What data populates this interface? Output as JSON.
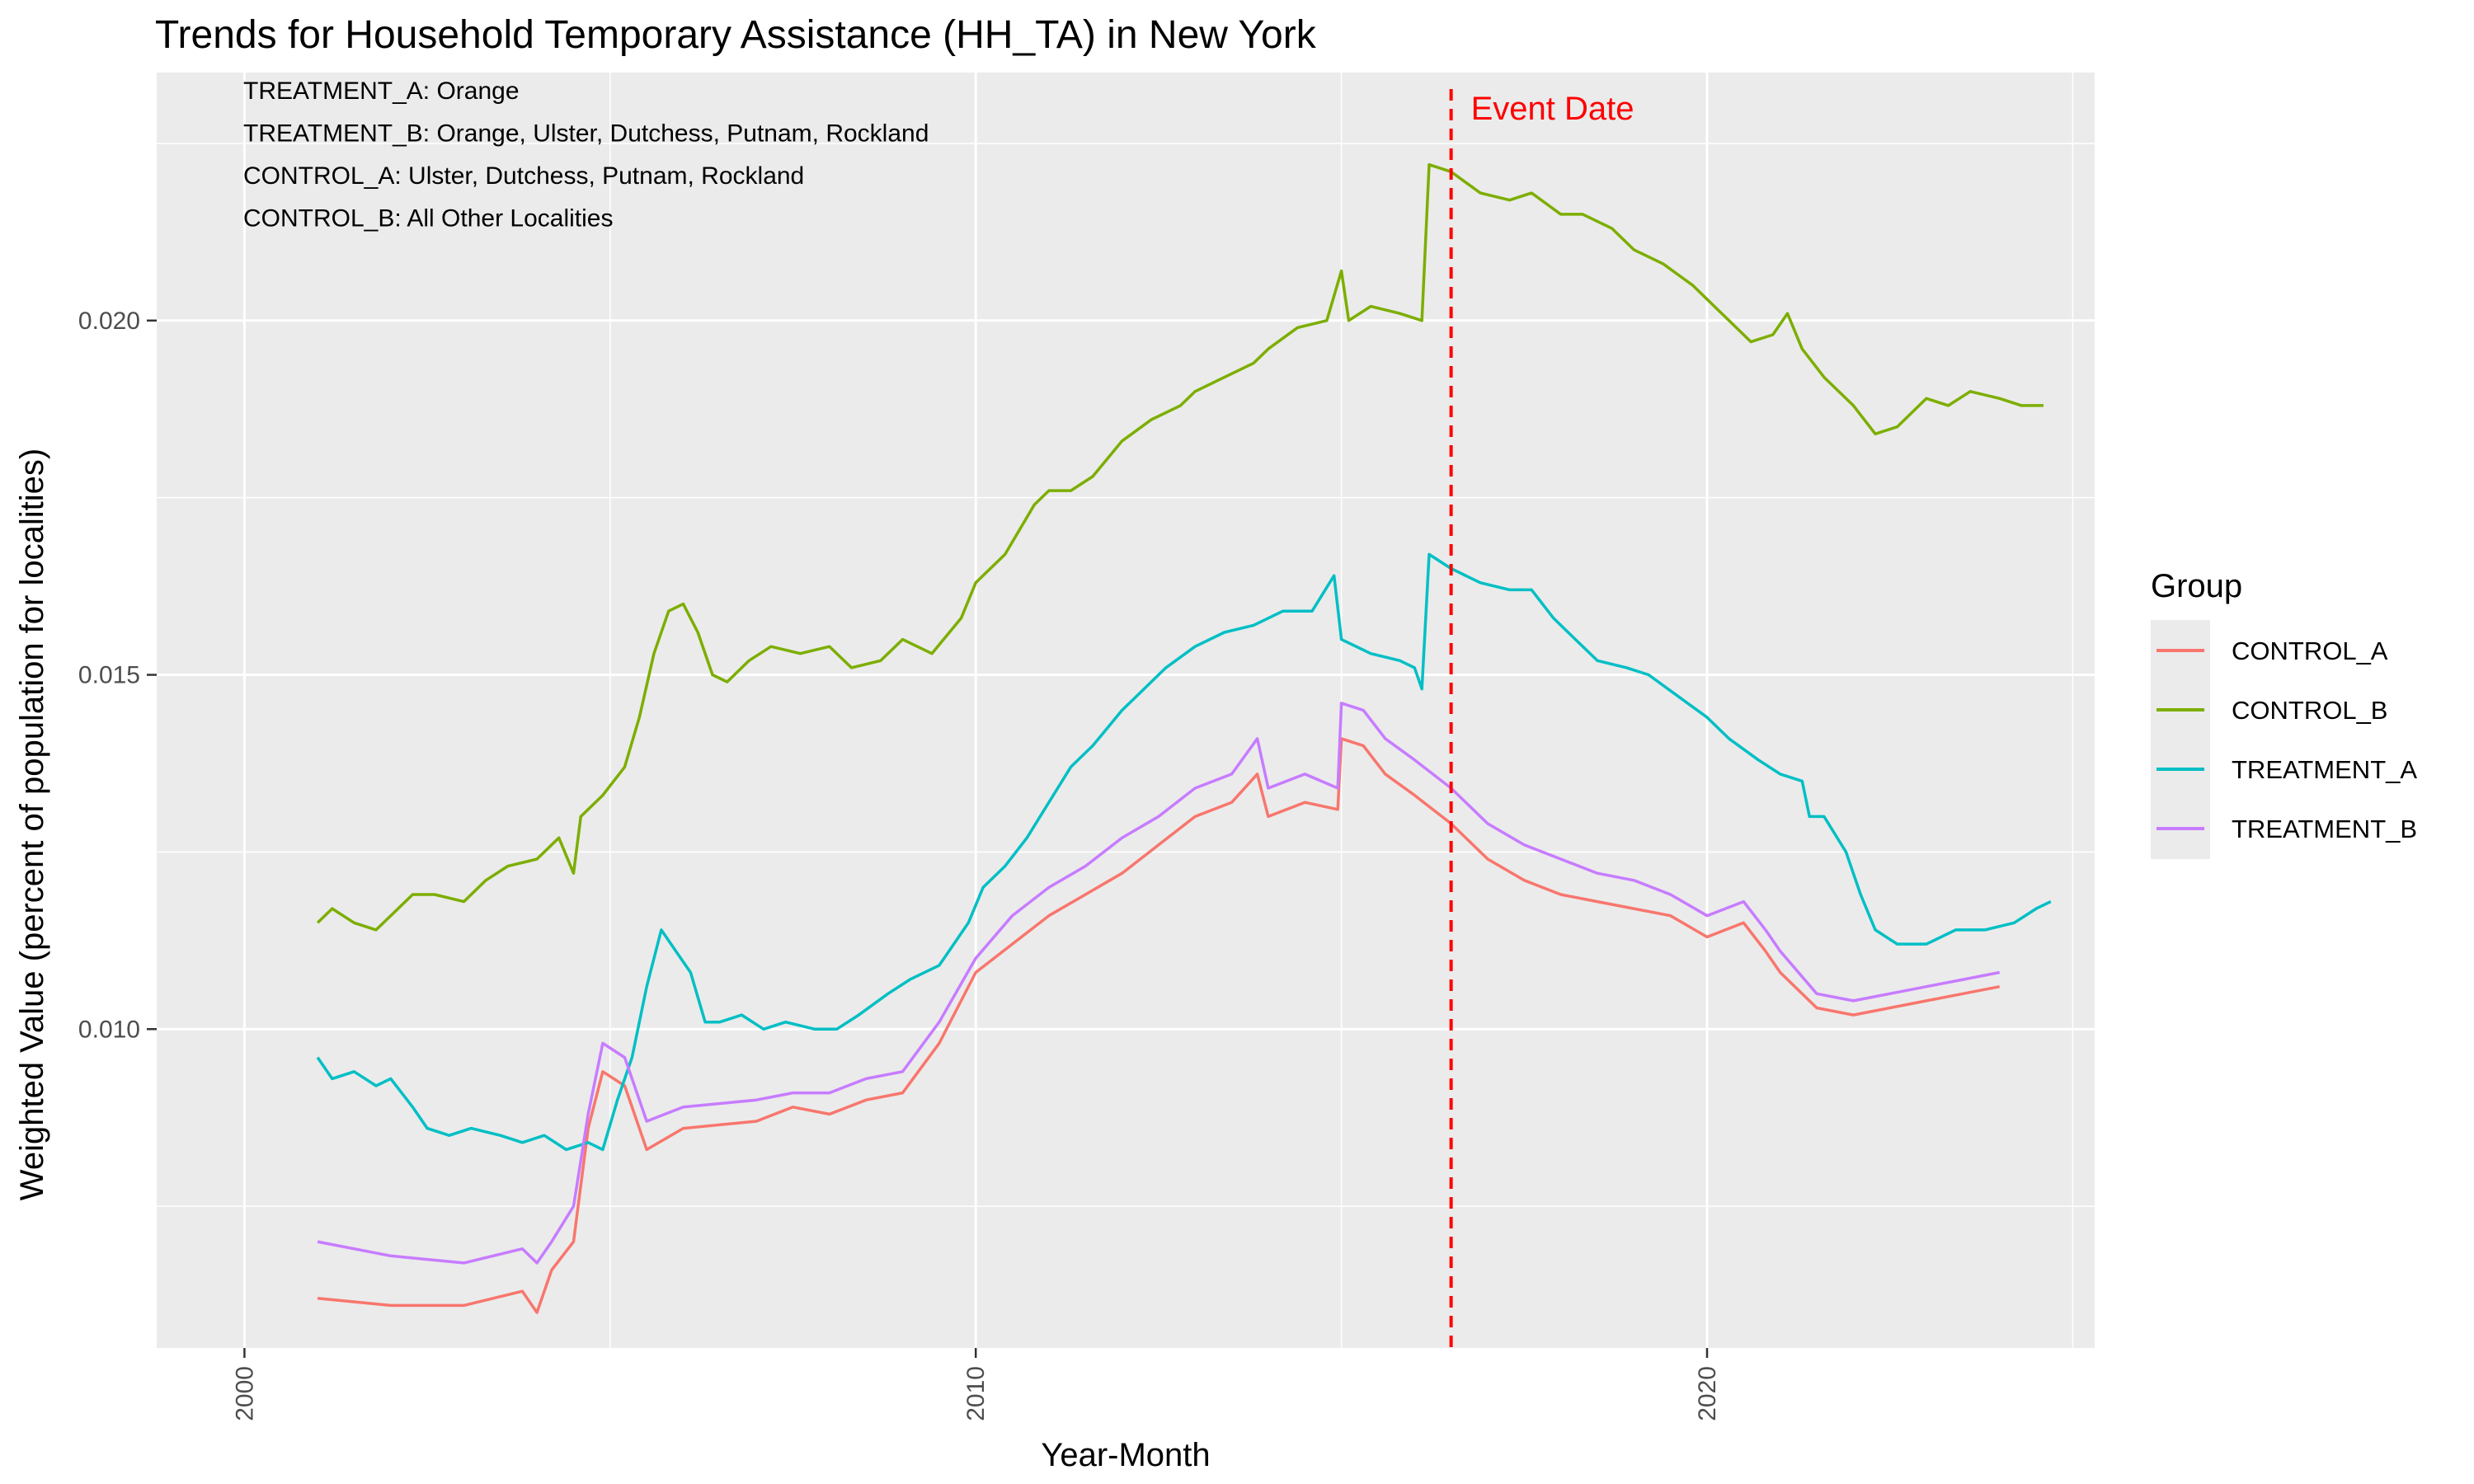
{
  "chart_data": {
    "type": "line",
    "title": "Trends for Household Temporary Assistance (HH_TA) in New York",
    "xlabel": "Year-Month",
    "ylabel": "Weighted Value (percent of population for localities)",
    "xlim": [
      1998.8,
      2025.3
    ],
    "ylim": [
      0.0055,
      0.0235
    ],
    "x_ticks": [
      "2000",
      "2010",
      "2020"
    ],
    "y_ticks": [
      "0.010",
      "0.015",
      "0.020"
    ],
    "grid": true,
    "legend": {
      "title": "Group",
      "placement": "right"
    },
    "annotations": [
      "TREATMENT_A: Orange",
      "TREATMENT_B: Orange, Ulster, Dutchess, Putnam, Rockland",
      "CONTROL_A: Ulster, Dutchess, Putnam, Rockland",
      "CONTROL_B: All Other Localities"
    ],
    "event_line": {
      "x": 2016.5,
      "label": "Event Date",
      "color": "#ff0000"
    },
    "series": [
      {
        "name": "CONTROL_A",
        "color": "#F8766D",
        "points": [
          [
            2001.0,
            0.0062
          ],
          [
            2002.0,
            0.0061
          ],
          [
            2003.0,
            0.0061
          ],
          [
            2003.8,
            0.0063
          ],
          [
            2004.0,
            0.006
          ],
          [
            2004.2,
            0.0066
          ],
          [
            2004.5,
            0.007
          ],
          [
            2004.7,
            0.0086
          ],
          [
            2004.9,
            0.0094
          ],
          [
            2005.2,
            0.0092
          ],
          [
            2005.5,
            0.0083
          ],
          [
            2006.0,
            0.0086
          ],
          [
            2007.0,
            0.0087
          ],
          [
            2007.5,
            0.0089
          ],
          [
            2008.0,
            0.0088
          ],
          [
            2008.5,
            0.009
          ],
          [
            2009.0,
            0.0091
          ],
          [
            2009.5,
            0.0098
          ],
          [
            2010.0,
            0.0108
          ],
          [
            2010.5,
            0.0112
          ],
          [
            2011.0,
            0.0116
          ],
          [
            2011.5,
            0.0119
          ],
          [
            2012.0,
            0.0122
          ],
          [
            2012.5,
            0.0126
          ],
          [
            2013.0,
            0.013
          ],
          [
            2013.5,
            0.0132
          ],
          [
            2013.85,
            0.0136
          ],
          [
            2014.0,
            0.013
          ],
          [
            2014.5,
            0.0132
          ],
          [
            2014.95,
            0.0131
          ],
          [
            2015.0,
            0.0141
          ],
          [
            2015.3,
            0.014
          ],
          [
            2015.6,
            0.0136
          ],
          [
            2016.0,
            0.0133
          ],
          [
            2016.5,
            0.0129
          ],
          [
            2017.0,
            0.0124
          ],
          [
            2017.5,
            0.0121
          ],
          [
            2018.0,
            0.0119
          ],
          [
            2018.5,
            0.0118
          ],
          [
            2019.0,
            0.0117
          ],
          [
            2019.5,
            0.0116
          ],
          [
            2020.0,
            0.0113
          ],
          [
            2020.5,
            0.0115
          ],
          [
            2020.8,
            0.0111
          ],
          [
            2021.0,
            0.0108
          ],
          [
            2021.5,
            0.0103
          ],
          [
            2022.0,
            0.0102
          ],
          [
            2022.5,
            0.0103
          ],
          [
            2023.0,
            0.0104
          ],
          [
            2023.5,
            0.0105
          ],
          [
            2024.0,
            0.0106
          ]
        ]
      },
      {
        "name": "CONTROL_B",
        "color": "#7CAE00",
        "points": [
          [
            2001.0,
            0.0115
          ],
          [
            2001.2,
            0.0117
          ],
          [
            2001.5,
            0.0115
          ],
          [
            2001.8,
            0.0114
          ],
          [
            2002.0,
            0.0116
          ],
          [
            2002.3,
            0.0119
          ],
          [
            2002.6,
            0.0119
          ],
          [
            2003.0,
            0.0118
          ],
          [
            2003.3,
            0.0121
          ],
          [
            2003.6,
            0.0123
          ],
          [
            2004.0,
            0.0124
          ],
          [
            2004.3,
            0.0127
          ],
          [
            2004.5,
            0.0122
          ],
          [
            2004.6,
            0.013
          ],
          [
            2004.9,
            0.0133
          ],
          [
            2005.2,
            0.0137
          ],
          [
            2005.4,
            0.0144
          ],
          [
            2005.6,
            0.0153
          ],
          [
            2005.8,
            0.0159
          ],
          [
            2006.0,
            0.016
          ],
          [
            2006.2,
            0.0156
          ],
          [
            2006.4,
            0.015
          ],
          [
            2006.6,
            0.0149
          ],
          [
            2006.9,
            0.0152
          ],
          [
            2007.2,
            0.0154
          ],
          [
            2007.6,
            0.0153
          ],
          [
            2008.0,
            0.0154
          ],
          [
            2008.3,
            0.0151
          ],
          [
            2008.7,
            0.0152
          ],
          [
            2009.0,
            0.0155
          ],
          [
            2009.4,
            0.0153
          ],
          [
            2009.8,
            0.0158
          ],
          [
            2010.0,
            0.0163
          ],
          [
            2010.4,
            0.0167
          ],
          [
            2010.8,
            0.0174
          ],
          [
            2011.0,
            0.0176
          ],
          [
            2011.3,
            0.0176
          ],
          [
            2011.6,
            0.0178
          ],
          [
            2012.0,
            0.0183
          ],
          [
            2012.4,
            0.0186
          ],
          [
            2012.8,
            0.0188
          ],
          [
            2013.0,
            0.019
          ],
          [
            2013.4,
            0.0192
          ],
          [
            2013.8,
            0.0194
          ],
          [
            2014.0,
            0.0196
          ],
          [
            2014.4,
            0.0199
          ],
          [
            2014.8,
            0.02
          ],
          [
            2015.0,
            0.0207
          ],
          [
            2015.1,
            0.02
          ],
          [
            2015.4,
            0.0202
          ],
          [
            2015.8,
            0.0201
          ],
          [
            2016.1,
            0.02
          ],
          [
            2016.2,
            0.0222
          ],
          [
            2016.5,
            0.0221
          ],
          [
            2016.9,
            0.0218
          ],
          [
            2017.3,
            0.0217
          ],
          [
            2017.6,
            0.0218
          ],
          [
            2018.0,
            0.0215
          ],
          [
            2018.3,
            0.0215
          ],
          [
            2018.7,
            0.0213
          ],
          [
            2019.0,
            0.021
          ],
          [
            2019.4,
            0.0208
          ],
          [
            2019.8,
            0.0205
          ],
          [
            2020.0,
            0.0203
          ],
          [
            2020.3,
            0.02
          ],
          [
            2020.6,
            0.0197
          ],
          [
            2020.9,
            0.0198
          ],
          [
            2021.1,
            0.0201
          ],
          [
            2021.3,
            0.0196
          ],
          [
            2021.6,
            0.0192
          ],
          [
            2022.0,
            0.0188
          ],
          [
            2022.3,
            0.0184
          ],
          [
            2022.6,
            0.0185
          ],
          [
            2023.0,
            0.0189
          ],
          [
            2023.3,
            0.0188
          ],
          [
            2023.6,
            0.019
          ],
          [
            2024.0,
            0.0189
          ],
          [
            2024.3,
            0.0188
          ],
          [
            2024.6,
            0.0188
          ]
        ]
      },
      {
        "name": "TREATMENT_A",
        "color": "#00BFC4",
        "points": [
          [
            2001.0,
            0.0096
          ],
          [
            2001.2,
            0.0093
          ],
          [
            2001.5,
            0.0094
          ],
          [
            2001.8,
            0.0092
          ],
          [
            2002.0,
            0.0093
          ],
          [
            2002.3,
            0.0089
          ],
          [
            2002.5,
            0.0086
          ],
          [
            2002.8,
            0.0085
          ],
          [
            2003.1,
            0.0086
          ],
          [
            2003.5,
            0.0085
          ],
          [
            2003.8,
            0.0084
          ],
          [
            2004.1,
            0.0085
          ],
          [
            2004.4,
            0.0083
          ],
          [
            2004.7,
            0.0084
          ],
          [
            2004.9,
            0.0083
          ],
          [
            2005.1,
            0.009
          ],
          [
            2005.3,
            0.0096
          ],
          [
            2005.5,
            0.0106
          ],
          [
            2005.7,
            0.0114
          ],
          [
            2005.9,
            0.0111
          ],
          [
            2006.1,
            0.0108
          ],
          [
            2006.3,
            0.0101
          ],
          [
            2006.5,
            0.0101
          ],
          [
            2006.8,
            0.0102
          ],
          [
            2007.1,
            0.01
          ],
          [
            2007.4,
            0.0101
          ],
          [
            2007.8,
            0.01
          ],
          [
            2008.1,
            0.01
          ],
          [
            2008.4,
            0.0102
          ],
          [
            2008.8,
            0.0105
          ],
          [
            2009.1,
            0.0107
          ],
          [
            2009.5,
            0.0109
          ],
          [
            2009.9,
            0.0115
          ],
          [
            2010.1,
            0.012
          ],
          [
            2010.4,
            0.0123
          ],
          [
            2010.7,
            0.0127
          ],
          [
            2011.0,
            0.0132
          ],
          [
            2011.3,
            0.0137
          ],
          [
            2011.6,
            0.014
          ],
          [
            2012.0,
            0.0145
          ],
          [
            2012.3,
            0.0148
          ],
          [
            2012.6,
            0.0151
          ],
          [
            2013.0,
            0.0154
          ],
          [
            2013.4,
            0.0156
          ],
          [
            2013.8,
            0.0157
          ],
          [
            2014.2,
            0.0159
          ],
          [
            2014.6,
            0.0159
          ],
          [
            2014.9,
            0.0164
          ],
          [
            2015.0,
            0.0155
          ],
          [
            2015.4,
            0.0153
          ],
          [
            2015.8,
            0.0152
          ],
          [
            2016.0,
            0.0151
          ],
          [
            2016.1,
            0.0148
          ],
          [
            2016.2,
            0.0167
          ],
          [
            2016.5,
            0.0165
          ],
          [
            2016.9,
            0.0163
          ],
          [
            2017.3,
            0.0162
          ],
          [
            2017.6,
            0.0162
          ],
          [
            2017.9,
            0.0158
          ],
          [
            2018.2,
            0.0155
          ],
          [
            2018.5,
            0.0152
          ],
          [
            2018.9,
            0.0151
          ],
          [
            2019.2,
            0.015
          ],
          [
            2019.6,
            0.0147
          ],
          [
            2020.0,
            0.0144
          ],
          [
            2020.3,
            0.0141
          ],
          [
            2020.7,
            0.0138
          ],
          [
            2021.0,
            0.0136
          ],
          [
            2021.3,
            0.0135
          ],
          [
            2021.4,
            0.013
          ],
          [
            2021.6,
            0.013
          ],
          [
            2021.9,
            0.0125
          ],
          [
            2022.1,
            0.0119
          ],
          [
            2022.3,
            0.0114
          ],
          [
            2022.6,
            0.0112
          ],
          [
            2023.0,
            0.0112
          ],
          [
            2023.4,
            0.0114
          ],
          [
            2023.8,
            0.0114
          ],
          [
            2024.2,
            0.0115
          ],
          [
            2024.5,
            0.0117
          ],
          [
            2024.7,
            0.0118
          ]
        ]
      },
      {
        "name": "TREATMENT_B",
        "color": "#C77CFF",
        "points": [
          [
            2001.0,
            0.007
          ],
          [
            2002.0,
            0.0068
          ],
          [
            2003.0,
            0.0067
          ],
          [
            2003.8,
            0.0069
          ],
          [
            2004.0,
            0.0067
          ],
          [
            2004.2,
            0.007
          ],
          [
            2004.5,
            0.0075
          ],
          [
            2004.7,
            0.0088
          ],
          [
            2004.9,
            0.0098
          ],
          [
            2005.2,
            0.0096
          ],
          [
            2005.5,
            0.0087
          ],
          [
            2006.0,
            0.0089
          ],
          [
            2007.0,
            0.009
          ],
          [
            2007.5,
            0.0091
          ],
          [
            2008.0,
            0.0091
          ],
          [
            2008.5,
            0.0093
          ],
          [
            2009.0,
            0.0094
          ],
          [
            2009.5,
            0.0101
          ],
          [
            2010.0,
            0.011
          ],
          [
            2010.5,
            0.0116
          ],
          [
            2011.0,
            0.012
          ],
          [
            2011.5,
            0.0123
          ],
          [
            2012.0,
            0.0127
          ],
          [
            2012.5,
            0.013
          ],
          [
            2013.0,
            0.0134
          ],
          [
            2013.5,
            0.0136
          ],
          [
            2013.85,
            0.0141
          ],
          [
            2014.0,
            0.0134
          ],
          [
            2014.5,
            0.0136
          ],
          [
            2014.95,
            0.0134
          ],
          [
            2015.0,
            0.0146
          ],
          [
            2015.3,
            0.0145
          ],
          [
            2015.6,
            0.0141
          ],
          [
            2016.0,
            0.0138
          ],
          [
            2016.5,
            0.0134
          ],
          [
            2017.0,
            0.0129
          ],
          [
            2017.5,
            0.0126
          ],
          [
            2018.0,
            0.0124
          ],
          [
            2018.5,
            0.0122
          ],
          [
            2019.0,
            0.0121
          ],
          [
            2019.5,
            0.0119
          ],
          [
            2020.0,
            0.0116
          ],
          [
            2020.5,
            0.0118
          ],
          [
            2020.8,
            0.0114
          ],
          [
            2021.0,
            0.0111
          ],
          [
            2021.5,
            0.0105
          ],
          [
            2022.0,
            0.0104
          ],
          [
            2022.5,
            0.0105
          ],
          [
            2023.0,
            0.0106
          ],
          [
            2023.5,
            0.0107
          ],
          [
            2024.0,
            0.0108
          ]
        ]
      }
    ]
  }
}
